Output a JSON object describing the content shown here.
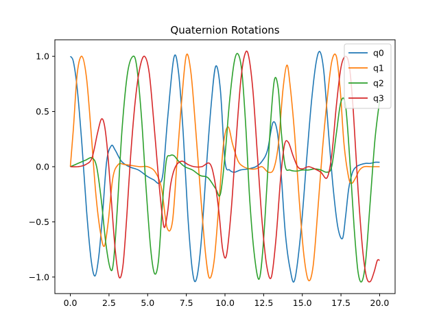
{
  "chart_data": {
    "type": "line",
    "title": "Quaternion Rotations",
    "xlabel": "",
    "ylabel": "",
    "xlim": [
      -1.0,
      21.0
    ],
    "ylim": [
      -1.15,
      1.15
    ],
    "grid": false,
    "legend_position": "top-right",
    "x_ticks": [
      0.0,
      2.5,
      5.0,
      7.5,
      10.0,
      12.5,
      15.0,
      17.5,
      20.0
    ],
    "x_tick_labels": [
      "0.0",
      "2.5",
      "5.0",
      "7.5",
      "10.0",
      "12.5",
      "15.0",
      "17.5",
      "20.0"
    ],
    "y_ticks": [
      -1.0,
      -0.5,
      0.0,
      0.5,
      1.0
    ],
    "y_tick_labels": [
      "−1.0",
      "−0.5",
      "0.0",
      "0.5",
      "1.0"
    ],
    "series": [
      {
        "name": "q0",
        "color": "#1f77b4",
        "x": [
          0.0,
          0.2,
          0.45,
          0.75,
          1.05,
          1.35,
          1.6,
          1.85,
          2.1,
          2.35,
          2.65,
          2.9,
          3.3,
          3.8,
          4.4,
          5.0,
          5.4,
          5.75,
          6.0,
          6.3,
          6.7,
          7.0,
          7.3,
          7.6,
          7.9,
          8.15,
          8.45,
          8.8,
          9.1,
          9.4,
          9.7,
          10.0,
          10.3,
          10.6,
          11.0,
          11.5,
          12.0,
          12.4,
          12.75,
          13.1,
          13.4,
          13.65,
          13.9,
          14.2,
          14.5,
          14.9,
          15.3,
          15.6,
          15.9,
          16.15,
          16.4,
          16.7,
          17.0,
          17.3,
          17.6,
          17.8,
          18.0,
          18.25,
          18.5,
          18.8,
          19.1,
          19.4,
          19.7,
          20.0
        ],
        "y": [
          1.0,
          0.95,
          0.7,
          0.2,
          -0.4,
          -0.85,
          -0.99,
          -0.8,
          -0.4,
          0.05,
          0.19,
          0.15,
          0.05,
          0.0,
          -0.03,
          -0.09,
          -0.12,
          -0.15,
          -0.05,
          0.45,
          0.99,
          0.85,
          0.3,
          -0.45,
          -0.95,
          -1.02,
          -0.7,
          0.0,
          0.55,
          0.91,
          0.7,
          0.05,
          -0.03,
          -0.05,
          -0.03,
          -0.02,
          0.0,
          0.05,
          0.15,
          0.4,
          0.3,
          -0.1,
          -0.6,
          -0.92,
          -1.03,
          -0.6,
          0.1,
          0.6,
          0.95,
          1.04,
          0.85,
          0.3,
          -0.2,
          -0.55,
          -0.65,
          -0.45,
          -0.2,
          -0.05,
          0.0,
          0.02,
          0.03,
          0.03,
          0.04,
          0.04
        ]
      },
      {
        "name": "q1",
        "color": "#ff7f0e",
        "x": [
          0.0,
          0.2,
          0.45,
          0.75,
          1.05,
          1.35,
          1.65,
          1.95,
          2.2,
          2.45,
          2.75,
          3.1,
          3.5,
          4.0,
          4.5,
          5.0,
          5.5,
          5.9,
          6.25,
          6.6,
          6.9,
          7.2,
          7.5,
          7.8,
          8.1,
          8.45,
          8.75,
          9.0,
          9.3,
          9.6,
          9.9,
          10.2,
          10.5,
          10.85,
          11.2,
          11.6,
          12.0,
          12.4,
          12.8,
          13.15,
          13.45,
          13.75,
          14.0,
          14.2,
          14.5,
          14.8,
          15.1,
          15.4,
          15.7,
          16.0,
          16.3,
          16.6,
          16.9,
          17.2,
          17.45,
          17.7,
          18.0,
          18.2,
          18.45,
          18.7,
          19.0,
          19.4,
          19.7,
          20.0
        ],
        "y": [
          0.0,
          0.35,
          0.85,
          1.0,
          0.8,
          0.3,
          -0.25,
          -0.6,
          -0.72,
          -0.5,
          -0.1,
          0.02,
          0.02,
          0.01,
          0.0,
          0.0,
          -0.05,
          -0.2,
          -0.55,
          -0.5,
          0.05,
          0.6,
          1.01,
          0.85,
          0.35,
          -0.3,
          -0.8,
          -1.01,
          -0.85,
          -0.35,
          0.2,
          0.36,
          0.2,
          0.05,
          0.0,
          -0.02,
          -0.02,
          0.0,
          -0.05,
          -0.02,
          0.2,
          0.7,
          0.92,
          0.75,
          0.3,
          -0.3,
          -0.8,
          -1.03,
          -0.9,
          -0.4,
          0.15,
          0.6,
          0.95,
          1.0,
          0.7,
          0.2,
          -0.1,
          -0.15,
          -0.1,
          -0.03,
          0.0,
          0.0,
          0.0,
          0.0
        ]
      },
      {
        "name": "q2",
        "color": "#2ca02c",
        "x": [
          0.0,
          0.5,
          1.0,
          1.4,
          1.7,
          2.0,
          2.3,
          2.6,
          2.8,
          3.05,
          3.35,
          3.7,
          4.05,
          4.3,
          4.6,
          4.9,
          5.2,
          5.45,
          5.7,
          5.95,
          6.2,
          6.45,
          6.7,
          7.0,
          7.4,
          7.9,
          8.4,
          8.9,
          9.4,
          9.7,
          10.0,
          10.3,
          10.6,
          10.85,
          11.1,
          11.35,
          11.6,
          11.9,
          12.2,
          12.45,
          12.7,
          12.95,
          13.2,
          13.45,
          13.65,
          13.9,
          14.2,
          14.6,
          15.0,
          15.4,
          15.8,
          16.2,
          16.6,
          16.9,
          17.2,
          17.5,
          17.8,
          18.1,
          18.35,
          18.6,
          18.85,
          19.1,
          19.4,
          19.7,
          20.0
        ],
        "y": [
          0.0,
          0.03,
          0.06,
          0.08,
          0.0,
          -0.3,
          -0.7,
          -0.93,
          -0.85,
          -0.35,
          0.35,
          0.85,
          1.0,
          0.9,
          0.45,
          -0.2,
          -0.75,
          -0.97,
          -0.85,
          -0.35,
          0.05,
          0.1,
          0.1,
          0.05,
          0.0,
          -0.03,
          -0.08,
          -0.1,
          -0.2,
          -0.25,
          0.1,
          0.6,
          0.95,
          1.02,
          0.85,
          0.35,
          -0.3,
          -0.8,
          -1.02,
          -0.75,
          -0.2,
          0.4,
          0.79,
          0.7,
          0.3,
          0.0,
          -0.03,
          -0.04,
          -0.03,
          -0.03,
          -0.02,
          -0.03,
          -0.05,
          0.0,
          0.3,
          0.59,
          0.55,
          0.0,
          -0.55,
          -0.95,
          -1.04,
          -0.85,
          -0.3,
          0.25,
          0.6
        ]
      },
      {
        "name": "q3",
        "color": "#d62728",
        "x": [
          0.0,
          0.5,
          1.0,
          1.4,
          1.75,
          2.0,
          2.2,
          2.4,
          2.65,
          2.9,
          3.15,
          3.4,
          3.65,
          3.9,
          4.2,
          4.5,
          4.8,
          5.1,
          5.4,
          5.7,
          5.95,
          6.1,
          6.3,
          6.5,
          6.8,
          7.2,
          7.6,
          8.0,
          8.5,
          9.0,
          9.3,
          9.6,
          9.85,
          10.1,
          10.4,
          10.7,
          11.0,
          11.25,
          11.5,
          11.8,
          12.1,
          12.4,
          12.7,
          13.0,
          13.3,
          13.6,
          13.85,
          14.1,
          14.4,
          14.7,
          15.0,
          15.4,
          15.8,
          16.2,
          16.6,
          16.9,
          17.2,
          17.5,
          17.8,
          18.05,
          18.3,
          18.6,
          18.9,
          19.15,
          19.4,
          19.65,
          19.85,
          20.0
        ],
        "y": [
          0.0,
          0.0,
          0.02,
          0.08,
          0.3,
          0.43,
          0.38,
          0.15,
          -0.3,
          -0.75,
          -1.0,
          -0.9,
          -0.45,
          0.1,
          0.6,
          0.9,
          1.0,
          0.85,
          0.4,
          -0.1,
          -0.45,
          -0.55,
          -0.4,
          -0.15,
          0.0,
          0.05,
          0.02,
          0.0,
          0.0,
          0.03,
          -0.1,
          -0.4,
          -0.75,
          -0.8,
          -0.4,
          0.2,
          0.75,
          1.0,
          1.02,
          0.7,
          0.1,
          -0.5,
          -0.9,
          -1.0,
          -0.65,
          -0.1,
          0.2,
          0.22,
          0.1,
          0.0,
          -0.02,
          0.0,
          -0.02,
          -0.05,
          -0.1,
          0.1,
          0.55,
          0.9,
          1.0,
          0.9,
          0.5,
          -0.2,
          -0.75,
          -1.0,
          -1.04,
          -0.95,
          -0.85,
          -0.85
        ]
      }
    ]
  }
}
